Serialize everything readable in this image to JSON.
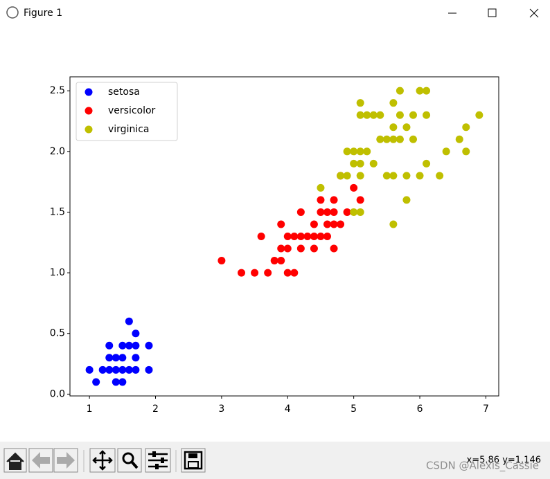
{
  "window": {
    "title": "Figure 1",
    "status": "x=5.86 y=1.146",
    "watermark": "CSDN @Alexis_Cassie"
  },
  "chart_data": {
    "type": "scatter",
    "xlim": [
      0.705,
      7.195
    ],
    "ylim": [
      -0.015,
      2.615
    ],
    "xticks": [
      1,
      2,
      3,
      4,
      5,
      6,
      7
    ],
    "yticks": [
      {
        "value": 0,
        "label": "0.0"
      },
      {
        "value": 0.5,
        "label": "0.5"
      },
      {
        "value": 1,
        "label": "1.0"
      },
      {
        "value": 1.5,
        "label": "1.5"
      },
      {
        "value": 2,
        "label": "2.0"
      },
      {
        "value": 2.5,
        "label": "2.5"
      }
    ],
    "legend": "upper left",
    "series": [
      {
        "name": "setosa",
        "color": "#0000ff",
        "x": [
          1.0,
          1.1,
          1.2,
          1.3,
          1.3,
          1.3,
          1.4,
          1.4,
          1.4,
          1.5,
          1.5,
          1.5,
          1.5,
          1.6,
          1.6,
          1.6,
          1.7,
          1.7,
          1.7,
          1.7,
          1.9,
          1.9
        ],
        "y": [
          0.2,
          0.1,
          0.2,
          0.2,
          0.3,
          0.4,
          0.1,
          0.2,
          0.3,
          0.1,
          0.2,
          0.3,
          0.4,
          0.2,
          0.4,
          0.6,
          0.2,
          0.3,
          0.4,
          0.5,
          0.2,
          0.4
        ]
      },
      {
        "name": "versicolor",
        "color": "#ff0000",
        "x": [
          3.0,
          3.3,
          3.5,
          3.6,
          3.7,
          3.8,
          3.9,
          3.9,
          3.9,
          4.0,
          4.0,
          4.0,
          4.1,
          4.1,
          4.2,
          4.2,
          4.2,
          4.3,
          4.4,
          4.4,
          4.4,
          4.5,
          4.5,
          4.5,
          4.6,
          4.6,
          4.6,
          4.7,
          4.7,
          4.7,
          4.7,
          4.8,
          4.8,
          4.9,
          5.0,
          5.1
        ],
        "y": [
          1.1,
          1.0,
          1.0,
          1.3,
          1.0,
          1.1,
          1.1,
          1.2,
          1.4,
          1.0,
          1.2,
          1.3,
          1.0,
          1.3,
          1.2,
          1.3,
          1.5,
          1.3,
          1.2,
          1.3,
          1.4,
          1.3,
          1.5,
          1.6,
          1.3,
          1.4,
          1.5,
          1.2,
          1.4,
          1.5,
          1.6,
          1.4,
          1.8,
          1.5,
          1.7,
          1.6
        ]
      },
      {
        "name": "virginica",
        "color": "#bfbf00",
        "x": [
          4.5,
          4.8,
          4.9,
          4.9,
          5.0,
          5.0,
          5.0,
          5.1,
          5.1,
          5.1,
          5.1,
          5.1,
          5.1,
          5.2,
          5.2,
          5.3,
          5.3,
          5.4,
          5.4,
          5.5,
          5.5,
          5.6,
          5.6,
          5.6,
          5.6,
          5.6,
          5.7,
          5.7,
          5.7,
          5.8,
          5.8,
          5.8,
          5.9,
          5.9,
          6.0,
          6.0,
          6.1,
          6.1,
          6.1,
          6.3,
          6.4,
          6.6,
          6.7,
          6.7,
          6.9
        ],
        "y": [
          1.7,
          1.8,
          1.8,
          2.0,
          1.5,
          1.9,
          2.0,
          1.5,
          1.8,
          1.9,
          2.0,
          2.3,
          2.4,
          2.0,
          2.3,
          1.9,
          2.3,
          2.1,
          2.3,
          1.8,
          2.1,
          1.4,
          1.8,
          2.1,
          2.2,
          2.4,
          2.1,
          2.3,
          2.5,
          1.6,
          1.8,
          2.2,
          2.1,
          2.3,
          1.8,
          2.5,
          1.9,
          2.3,
          2.5,
          1.8,
          2.0,
          2.1,
          2.0,
          2.2,
          2.3
        ]
      }
    ]
  }
}
